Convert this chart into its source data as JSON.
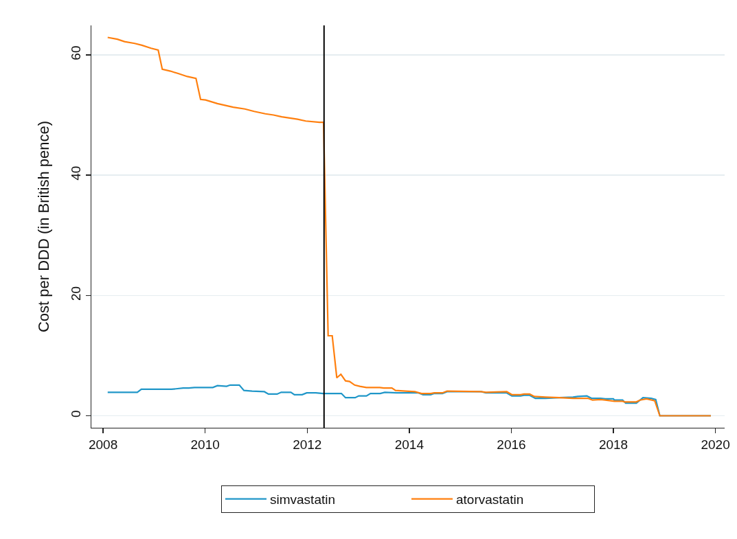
{
  "chart_data": {
    "type": "line",
    "ylabel": "Cost per DDD (in British pence)",
    "xlim": [
      2007.77,
      2020.18
    ],
    "ylim": [
      -2.0,
      64.9
    ],
    "xticks": [
      2008,
      2010,
      2012,
      2014,
      2016,
      2018,
      2020
    ],
    "yticks": [
      0,
      20,
      40,
      60
    ],
    "grid": "y",
    "legend": "bottom",
    "line_style": "solid",
    "ref_lines": [
      {
        "axis": "x",
        "value": 2012.33,
        "color": "#000000"
      }
    ],
    "series": [
      {
        "name": "simvastatin",
        "color": "#1f96c8",
        "x": [
          2008.09,
          2008.22,
          2008.4,
          2008.49,
          2008.67,
          2008.75,
          2008.94,
          2009.12,
          2009.34,
          2009.57,
          2009.68,
          2009.79,
          2009.92,
          2010.15,
          2010.24,
          2010.42,
          2010.49,
          2010.67,
          2010.76,
          2010.92,
          2011.16,
          2011.24,
          2011.41,
          2011.49,
          2011.68,
          2011.75,
          2011.9,
          2011.99,
          2012.17,
          2012.31,
          2012.67,
          2012.75,
          2012.94,
          2013.01,
          2013.16,
          2013.24,
          2013.43,
          2013.52,
          2013.75,
          2014.18,
          2014.27,
          2014.42,
          2014.49,
          2014.65,
          2014.74,
          2015.41,
          2015.5,
          2015.91,
          2016.01,
          2016.18,
          2016.25,
          2016.36,
          2016.47,
          2016.67,
          2016.94,
          2017.21,
          2017.3,
          2017.48,
          2017.57,
          2017.75,
          2017.84,
          2018.0,
          2018.02,
          2018.18,
          2018.24,
          2018.45,
          2018.58,
          2018.74,
          2018.83,
          2018.91,
          2019.91
        ],
        "values": [
          3.9,
          3.9,
          3.9,
          3.9,
          3.9,
          4.4,
          4.4,
          4.4,
          4.4,
          4.6,
          4.6,
          4.7,
          4.7,
          4.7,
          5.0,
          4.9,
          5.1,
          5.1,
          4.2,
          4.1,
          4.0,
          3.6,
          3.6,
          3.9,
          3.9,
          3.5,
          3.5,
          3.8,
          3.8,
          3.7,
          3.7,
          3.0,
          3.0,
          3.3,
          3.3,
          3.7,
          3.7,
          3.9,
          3.8,
          3.8,
          3.5,
          3.5,
          3.7,
          3.7,
          4.0,
          4.0,
          3.8,
          3.8,
          3.3,
          3.3,
          3.4,
          3.4,
          2.9,
          2.9,
          3.0,
          3.1,
          3.2,
          3.3,
          2.9,
          2.9,
          2.8,
          2.8,
          2.6,
          2.6,
          2.1,
          2.1,
          3.0,
          2.9,
          2.7,
          0.0,
          0.0
        ]
      },
      {
        "name": "atorvastatin",
        "color": "#ff7f0e",
        "x": [
          2008.09,
          2008.28,
          2008.42,
          2008.62,
          2008.76,
          2008.94,
          2009.08,
          2009.16,
          2009.32,
          2009.47,
          2009.65,
          2009.82,
          2009.91,
          2010.01,
          2010.24,
          2010.55,
          2010.78,
          2010.96,
          2011.18,
          2011.34,
          2011.5,
          2011.81,
          2011.97,
          2012.24,
          2012.32,
          2012.41,
          2012.49,
          2012.58,
          2012.66,
          2012.75,
          2012.83,
          2012.93,
          2013.03,
          2013.16,
          2013.42,
          2013.5,
          2013.66,
          2013.73,
          2013.93,
          2014.11,
          2014.24,
          2014.42,
          2014.49,
          2014.65,
          2014.74,
          2015.41,
          2015.5,
          2015.91,
          2016.01,
          2016.18,
          2016.25,
          2016.36,
          2016.45,
          2016.67,
          2016.94,
          2017.21,
          2017.5,
          2017.59,
          2017.75,
          2017.84,
          2018.02,
          2018.18,
          2018.22,
          2018.45,
          2018.52,
          2018.65,
          2018.81,
          2018.91,
          2019.91
        ],
        "values": [
          62.9,
          62.6,
          62.2,
          61.9,
          61.6,
          61.1,
          60.8,
          57.6,
          57.3,
          56.9,
          56.4,
          56.1,
          52.6,
          52.5,
          51.9,
          51.3,
          51.0,
          50.6,
          50.2,
          50.0,
          49.7,
          49.3,
          49.0,
          48.8,
          48.8,
          13.3,
          13.3,
          6.3,
          6.9,
          5.8,
          5.7,
          5.1,
          4.9,
          4.7,
          4.7,
          4.6,
          4.6,
          4.2,
          4.1,
          4.0,
          3.7,
          3.7,
          3.8,
          3.8,
          4.1,
          4.0,
          3.9,
          4.0,
          3.5,
          3.5,
          3.6,
          3.6,
          3.2,
          3.1,
          3.0,
          2.9,
          2.9,
          2.6,
          2.7,
          2.6,
          2.4,
          2.4,
          2.3,
          2.3,
          2.6,
          2.8,
          2.5,
          0.0,
          0.0
        ]
      }
    ]
  }
}
